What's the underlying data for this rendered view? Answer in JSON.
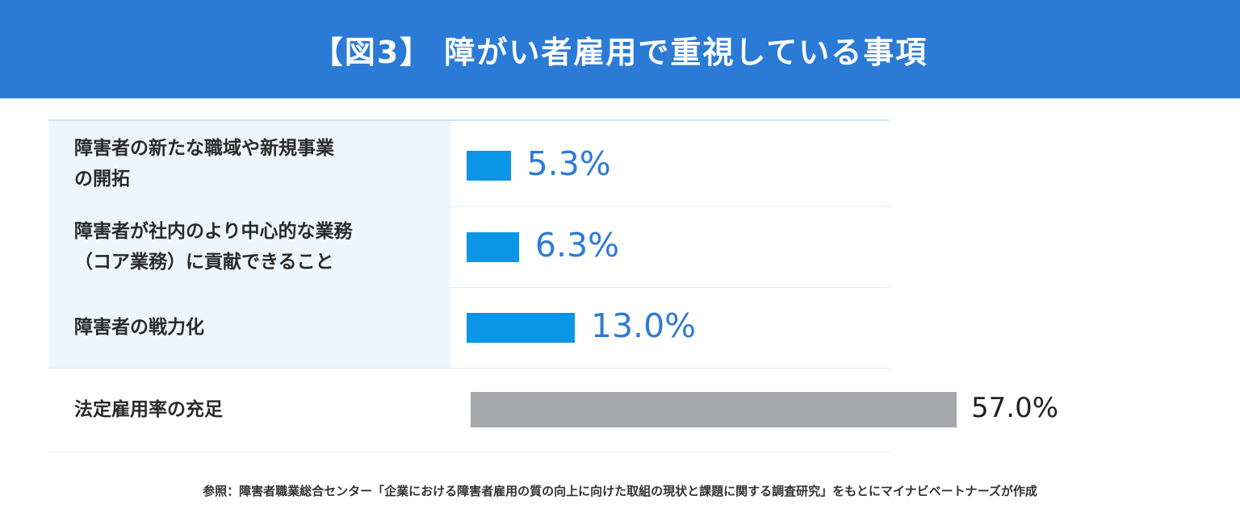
{
  "header": {
    "title": "【図3】 障がい者雇用で重視している事項"
  },
  "chart_data": {
    "type": "bar",
    "orientation": "horizontal",
    "title": "【図3】 障がい者雇用で重視している事項",
    "unit": "%",
    "categories": [
      "障害者の新たな職域や新規事業\nの開拓",
      "障害者が社内のより中心的な業務\n（コア業務）に貢献できること",
      "障害者の戦力化",
      "法定雇用率の充足"
    ],
    "values": [
      5.3,
      6.3,
      13.0,
      57.0
    ],
    "value_labels": [
      "5.3%",
      "6.3%",
      "13.0%",
      "57.0%"
    ],
    "colors": [
      "#0a96e6",
      "#0a96e6",
      "#0a96e6",
      "#a7a9ac"
    ],
    "xlim": [
      0,
      57.0
    ]
  },
  "footnote": "参照：障害者職業総合センター「企業における障害者雇用の質の向上に向けた取組の現状と課題に関する調査研究」をもとにマイナビベートナーズが作成"
}
